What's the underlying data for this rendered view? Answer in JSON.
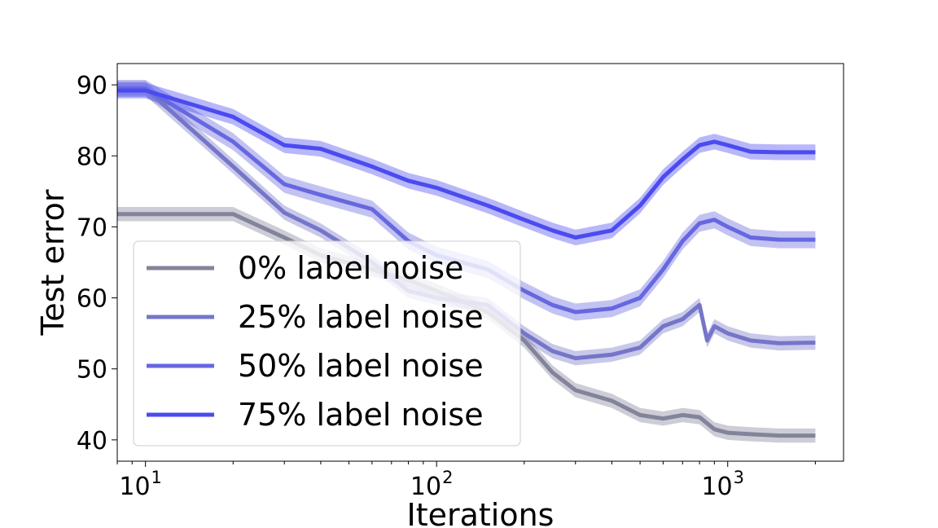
{
  "chart_data": {
    "type": "line",
    "title": "",
    "xlabel": "Iterations",
    "ylabel": "Test error",
    "xscale": "log",
    "xlim": [
      8,
      2500
    ],
    "ylim": [
      37,
      93
    ],
    "yticks": [
      40,
      50,
      60,
      70,
      80,
      90
    ],
    "xticks": [
      {
        "base": "10",
        "exp": "1",
        "value": 10
      },
      {
        "base": "10",
        "exp": "2",
        "value": 100
      },
      {
        "base": "10",
        "exp": "3",
        "value": 1000
      }
    ],
    "legend": {
      "position": "lower-left"
    },
    "series": [
      {
        "name": "0% label noise",
        "color": "#83839a",
        "points": [
          [
            8,
            71.8
          ],
          [
            10,
            71.8
          ],
          [
            20,
            71.8
          ],
          [
            30,
            68.5
          ],
          [
            40,
            66
          ],
          [
            60,
            64
          ],
          [
            80,
            62.5
          ],
          [
            100,
            61
          ],
          [
            150,
            58
          ],
          [
            200,
            54
          ],
          [
            250,
            49.5
          ],
          [
            300,
            47
          ],
          [
            400,
            45.5
          ],
          [
            500,
            43.5
          ],
          [
            600,
            43
          ],
          [
            700,
            43.5
          ],
          [
            800,
            43.2
          ],
          [
            900,
            41.5
          ],
          [
            1000,
            41
          ],
          [
            1200,
            40.8
          ],
          [
            1500,
            40.6
          ],
          [
            2000,
            40.6
          ]
        ],
        "band": 1.0
      },
      {
        "name": "25% label noise",
        "color": "#7575c9",
        "points": [
          [
            8,
            89.5
          ],
          [
            10,
            89.5
          ],
          [
            20,
            78.5
          ],
          [
            30,
            72
          ],
          [
            40,
            69.5
          ],
          [
            60,
            65
          ],
          [
            80,
            61
          ],
          [
            100,
            60
          ],
          [
            150,
            59
          ],
          [
            200,
            55
          ],
          [
            250,
            52.5
          ],
          [
            300,
            51.5
          ],
          [
            400,
            52
          ],
          [
            500,
            53
          ],
          [
            600,
            56
          ],
          [
            700,
            57
          ],
          [
            800,
            59
          ],
          [
            850,
            54
          ],
          [
            900,
            56
          ],
          [
            1000,
            55
          ],
          [
            1200,
            54
          ],
          [
            1500,
            53.6
          ],
          [
            2000,
            53.7
          ]
        ],
        "band": 1.0
      },
      {
        "name": "50% label noise",
        "color": "#6767e0",
        "points": [
          [
            8,
            89.5
          ],
          [
            10,
            89.5
          ],
          [
            20,
            82
          ],
          [
            30,
            76
          ],
          [
            40,
            74.5
          ],
          [
            60,
            72.5
          ],
          [
            80,
            68
          ],
          [
            100,
            66
          ],
          [
            150,
            64
          ],
          [
            200,
            61
          ],
          [
            250,
            59
          ],
          [
            300,
            58
          ],
          [
            400,
            58.5
          ],
          [
            500,
            60
          ],
          [
            600,
            64
          ],
          [
            700,
            68
          ],
          [
            800,
            70.5
          ],
          [
            900,
            71
          ],
          [
            1000,
            70
          ],
          [
            1200,
            68.5
          ],
          [
            1500,
            68.2
          ],
          [
            2000,
            68.2
          ]
        ],
        "band": 1.2
      },
      {
        "name": "75% label noise",
        "color": "#4b4bf0",
        "points": [
          [
            8,
            89.2
          ],
          [
            10,
            89.2
          ],
          [
            20,
            85.5
          ],
          [
            30,
            81.5
          ],
          [
            40,
            81
          ],
          [
            60,
            78.5
          ],
          [
            80,
            76.5
          ],
          [
            100,
            75.5
          ],
          [
            150,
            73
          ],
          [
            200,
            71
          ],
          [
            250,
            69.5
          ],
          [
            300,
            68.5
          ],
          [
            400,
            69.5
          ],
          [
            500,
            73
          ],
          [
            600,
            77
          ],
          [
            700,
            79.5
          ],
          [
            800,
            81.5
          ],
          [
            900,
            82
          ],
          [
            1000,
            81.5
          ],
          [
            1200,
            80.6
          ],
          [
            1500,
            80.5
          ],
          [
            2000,
            80.5
          ]
        ],
        "band": 1.1
      }
    ]
  }
}
